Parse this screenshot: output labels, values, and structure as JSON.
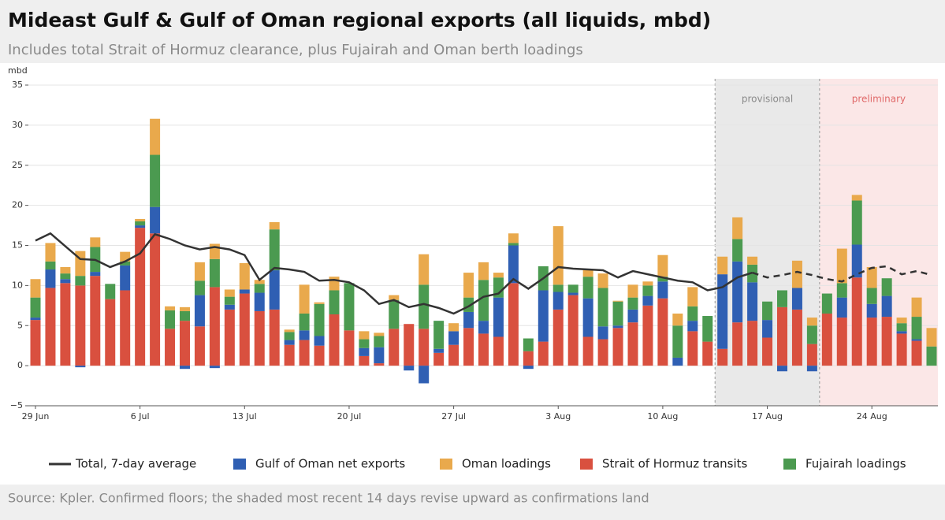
{
  "chart_data": {
    "type": "bar",
    "title": "Mideast Gulf & Gulf of Oman regional exports (all liquids, mbd)",
    "subtitle": "Includes total Strait of Hormuz clearance, plus Fujairah and Oman berth loadings",
    "y_axis_label": "mbd",
    "source": "Source: Kpler. Confirmed floors; the shaded most recent 14 days revise upward as confirmations land",
    "categories": [
      "29 Jun",
      null,
      null,
      null,
      null,
      null,
      null,
      "6 Jul",
      null,
      null,
      null,
      null,
      null,
      null,
      "13 Jul",
      null,
      null,
      null,
      null,
      null,
      null,
      "20 Jul",
      null,
      null,
      null,
      null,
      null,
      null,
      "27 Jul",
      null,
      null,
      null,
      null,
      null,
      null,
      "3 Aug",
      null,
      null,
      null,
      null,
      null,
      null,
      "10 Aug",
      null,
      null,
      null,
      null,
      null,
      null,
      "17 Aug",
      null,
      null,
      null,
      null,
      null,
      null,
      "24 Aug",
      null,
      null,
      null,
      null
    ],
    "ylim": [
      -5,
      35
    ],
    "yticks": [
      {
        "value": -5,
        "label": "−5"
      },
      0,
      5,
      10,
      15,
      20,
      25,
      30,
      35
    ],
    "grid": true,
    "stacked": true,
    "stack_order": [
      3,
      1,
      4,
      2
    ],
    "line_dashed_from_index": 48,
    "regions": [
      {
        "label": "provisional",
        "from_index": 46,
        "to_index": 52,
        "color": "#e9e9e9",
        "label_color": "#8a8a8a"
      },
      {
        "label": "preliminary",
        "from_index": 53,
        "to_index": 60,
        "color": "#fbe7e7",
        "label_color": "#e06a6a"
      }
    ],
    "series": [
      {
        "name": "Total, 7-day average",
        "type": "line",
        "color": "#333333",
        "values": [
          15.6,
          16.5,
          14.9,
          13.3,
          13.2,
          12.3,
          13.0,
          14.0,
          16.4,
          15.8,
          15.0,
          14.5,
          14.8,
          14.5,
          13.8,
          10.7,
          12.2,
          12.0,
          11.7,
          10.6,
          10.7,
          10.4,
          9.4,
          7.7,
          8.2,
          7.3,
          7.7,
          7.2,
          6.5,
          7.4,
          8.6,
          9.0,
          10.8,
          9.6,
          10.9,
          12.3,
          12.1,
          12.0,
          11.9,
          11.0,
          11.8,
          11.4,
          11.0,
          10.6,
          10.4,
          9.4,
          9.8,
          11.0,
          11.6,
          11.0,
          11.3,
          11.7,
          11.3,
          10.8,
          10.5,
          11.4,
          12.2,
          12.4,
          11.4,
          11.8,
          11.3
        ]
      },
      {
        "name": "Gulf of Oman net exports",
        "color": "#2f5fb3",
        "values": [
          0.3,
          2.3,
          0.5,
          -0.2,
          0.5,
          0,
          3.1,
          0.3,
          3.3,
          0,
          -0.4,
          3.9,
          -0.3,
          0.6,
          0.5,
          2.3,
          4.9,
          0.6,
          1.2,
          1.2,
          0,
          0,
          1.0,
          2.0,
          0,
          -0.6,
          -2.2,
          0.5,
          1.7,
          2.0,
          1.6,
          4.9,
          4.7,
          -0.4,
          6.4,
          2.2,
          0.3,
          4.8,
          1.6,
          0.3,
          1.6,
          1.2,
          2.1,
          1.0,
          1.3,
          0,
          9.3,
          7.6,
          4.8,
          2.2,
          -0.7,
          2.7,
          -0.7,
          0,
          2.5,
          4.1,
          1.7,
          2.6,
          0.3,
          0.2,
          0
        ]
      },
      {
        "name": "Oman loadings",
        "color": "#e9a94c",
        "values": [
          2.3,
          2.3,
          0.8,
          3.1,
          1.2,
          0,
          1.2,
          0.3,
          4.5,
          0.5,
          0.5,
          2.3,
          1.9,
          0.9,
          3.3,
          0.5,
          0.9,
          0.3,
          3.6,
          0.2,
          1.7,
          0,
          1.0,
          0.4,
          0.6,
          0,
          3.8,
          0,
          1.0,
          3.1,
          2.2,
          0.6,
          1.2,
          0,
          0,
          7.3,
          0,
          0.9,
          1.8,
          0.1,
          1.6,
          0.5,
          2.7,
          1.5,
          2.4,
          0,
          2.2,
          2.7,
          1.0,
          0,
          0,
          3.4,
          1.0,
          0,
          4.3,
          0.7,
          2.6,
          0,
          0.7,
          2.4,
          2.3
        ]
      },
      {
        "name": "Strait of Hormuz transits",
        "color": "#d9503f",
        "values": [
          5.7,
          9.7,
          10.3,
          10.0,
          11.2,
          8.3,
          9.4,
          17.2,
          16.5,
          4.6,
          5.6,
          4.9,
          9.8,
          7.0,
          9.0,
          6.8,
          7.0,
          2.6,
          3.2,
          2.5,
          6.4,
          4.4,
          1.2,
          0.3,
          4.6,
          5.2,
          4.6,
          1.6,
          2.6,
          4.7,
          4.0,
          3.6,
          10.3,
          1.8,
          3.0,
          7.0,
          8.8,
          3.6,
          3.3,
          4.7,
          5.4,
          7.5,
          8.4,
          0,
          4.3,
          3.0,
          2.1,
          5.4,
          5.6,
          3.5,
          7.3,
          7.0,
          2.7,
          6.5,
          6.0,
          11.0,
          6.0,
          6.1,
          4.0,
          3.1,
          0
        ]
      },
      {
        "name": "Fujairah loadings",
        "color": "#4b9a50",
        "values": [
          2.5,
          1.0,
          0.7,
          1.2,
          3.1,
          1.9,
          0.5,
          0.5,
          6.5,
          2.3,
          1.2,
          1.8,
          3.5,
          1.0,
          0,
          1.1,
          5.1,
          1.0,
          2.1,
          4.0,
          3.0,
          5.9,
          1.1,
          1.4,
          3.6,
          0,
          5.5,
          3.5,
          0,
          1.8,
          5.1,
          2.5,
          0.3,
          1.6,
          3.0,
          0.9,
          1.0,
          2.7,
          4.8,
          3.0,
          1.5,
          1.3,
          0.6,
          4.0,
          1.8,
          3.2,
          0,
          2.8,
          2.2,
          2.3,
          2.1,
          0,
          2.3,
          2.5,
          1.8,
          5.5,
          2.0,
          2.2,
          1.0,
          2.8,
          2.4
        ]
      }
    ]
  }
}
